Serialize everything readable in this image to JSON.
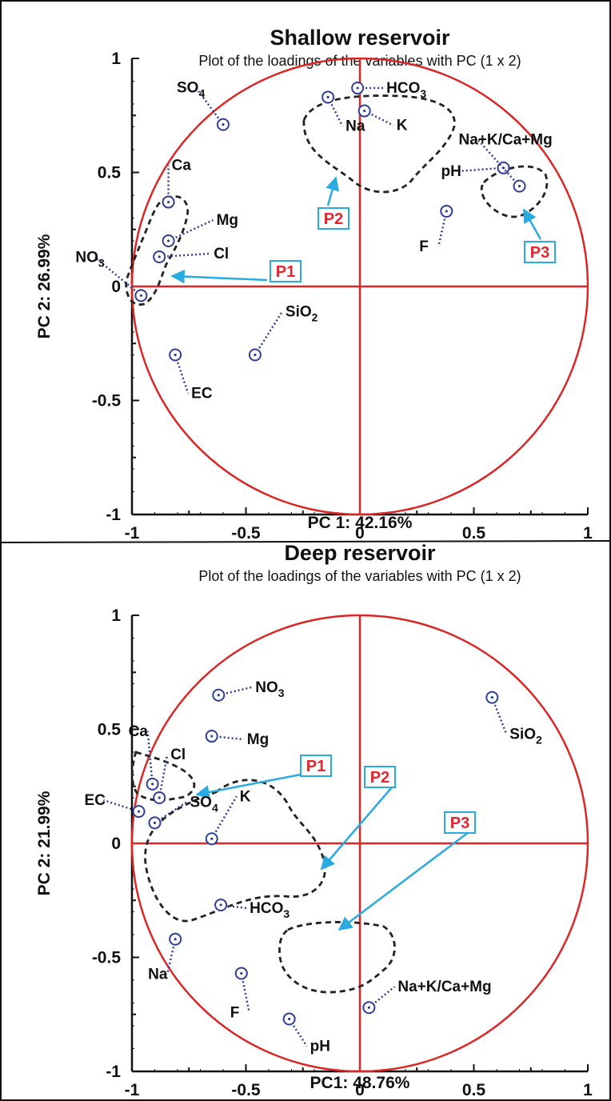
{
  "chart_data": [
    {
      "type": "scatter",
      "title": "Shallow reservoir",
      "subtitle": "Plot of the loadings of the variables with PC (1 x 2)",
      "xlabel": "PC 1: 42.16%",
      "ylabel": "PC 2: 26.99%",
      "xlim": [
        -1,
        1
      ],
      "ylim": [
        -1,
        1
      ],
      "xticks": [
        "-1",
        "-0.5",
        "0",
        "0.5",
        "1"
      ],
      "yticks": [
        "1",
        "0.5",
        "0",
        "-0.5",
        "-1"
      ],
      "grid": false,
      "points": [
        {
          "label": "SO4",
          "x": -0.6,
          "y": 0.71
        },
        {
          "label": "Ca",
          "x": -0.84,
          "y": 0.37
        },
        {
          "label": "Mg",
          "x": -0.84,
          "y": 0.2
        },
        {
          "label": "Cl",
          "x": -0.88,
          "y": 0.13
        },
        {
          "label": "NO3",
          "x": -0.96,
          "y": -0.04
        },
        {
          "label": "HCO3",
          "x": -0.01,
          "y": 0.87
        },
        {
          "label": "Na",
          "x": -0.14,
          "y": 0.83
        },
        {
          "label": "K",
          "x": 0.02,
          "y": 0.77
        },
        {
          "label": "pH",
          "x": 0.63,
          "y": 0.52
        },
        {
          "label": "Na+K/Ca+Mg",
          "x": 0.7,
          "y": 0.44
        },
        {
          "label": "F",
          "x": 0.38,
          "y": 0.33
        },
        {
          "label": "SiO2",
          "x": -0.46,
          "y": -0.3
        },
        {
          "label": "EC",
          "x": -0.81,
          "y": -0.3
        }
      ],
      "groups": [
        {
          "name": "P1",
          "members": [
            "Ca",
            "Mg",
            "Cl",
            "NO3"
          ]
        },
        {
          "name": "P2",
          "members": [
            "Na",
            "HCO3",
            "K"
          ]
        },
        {
          "name": "P3",
          "members": [
            "pH",
            "Na+K/Ca+Mg"
          ]
        }
      ]
    },
    {
      "type": "scatter",
      "title": "Deep reservoir",
      "subtitle": "Plot of the loadings of the variables with PC (1 x 2)",
      "xlabel": "PC1: 48.76%",
      "ylabel": "PC 2: 21.99%",
      "xlim": [
        -1,
        1
      ],
      "ylim": [
        -1,
        1
      ],
      "xticks": [
        "-1",
        "-0.5",
        "0",
        "0.5",
        "1"
      ],
      "yticks": [
        "1",
        "0.5",
        "0",
        "-0.5",
        "-1"
      ],
      "grid": false,
      "points": [
        {
          "label": "NO3",
          "x": -0.62,
          "y": 0.65
        },
        {
          "label": "Mg",
          "x": -0.65,
          "y": 0.47
        },
        {
          "label": "SiO2",
          "x": 0.58,
          "y": 0.64
        },
        {
          "label": "Ca",
          "x": -0.91,
          "y": 0.26
        },
        {
          "label": "Cl",
          "x": -0.88,
          "y": 0.2
        },
        {
          "label": "SO4",
          "x": -0.9,
          "y": 0.09
        },
        {
          "label": "EC",
          "x": -0.97,
          "y": 0.14
        },
        {
          "label": "K",
          "x": -0.65,
          "y": 0.02
        },
        {
          "label": "HCO3",
          "x": -0.61,
          "y": -0.27
        },
        {
          "label": "Na",
          "x": -0.81,
          "y": -0.42
        },
        {
          "label": "F",
          "x": -0.52,
          "y": -0.57
        },
        {
          "label": "Na+K/Ca+Mg",
          "x": 0.04,
          "y": -0.72
        },
        {
          "label": "pH",
          "x": -0.31,
          "y": -0.77
        }
      ],
      "groups": [
        {
          "name": "P1",
          "members": [
            "Ca",
            "Cl",
            "SO4",
            "EC"
          ]
        },
        {
          "name": "P2",
          "members": [
            "K",
            "HCO3",
            "Na"
          ]
        },
        {
          "name": "P3",
          "members": [
            "pH",
            "Na+K/Ca+Mg"
          ]
        }
      ]
    }
  ],
  "colors": {
    "circle": "#dc2626",
    "axes_lines": "#dc2626",
    "points": "#2f3f95",
    "callout": "#29abe2",
    "callout_text": "#e3262f",
    "group_outline": "#222222"
  }
}
